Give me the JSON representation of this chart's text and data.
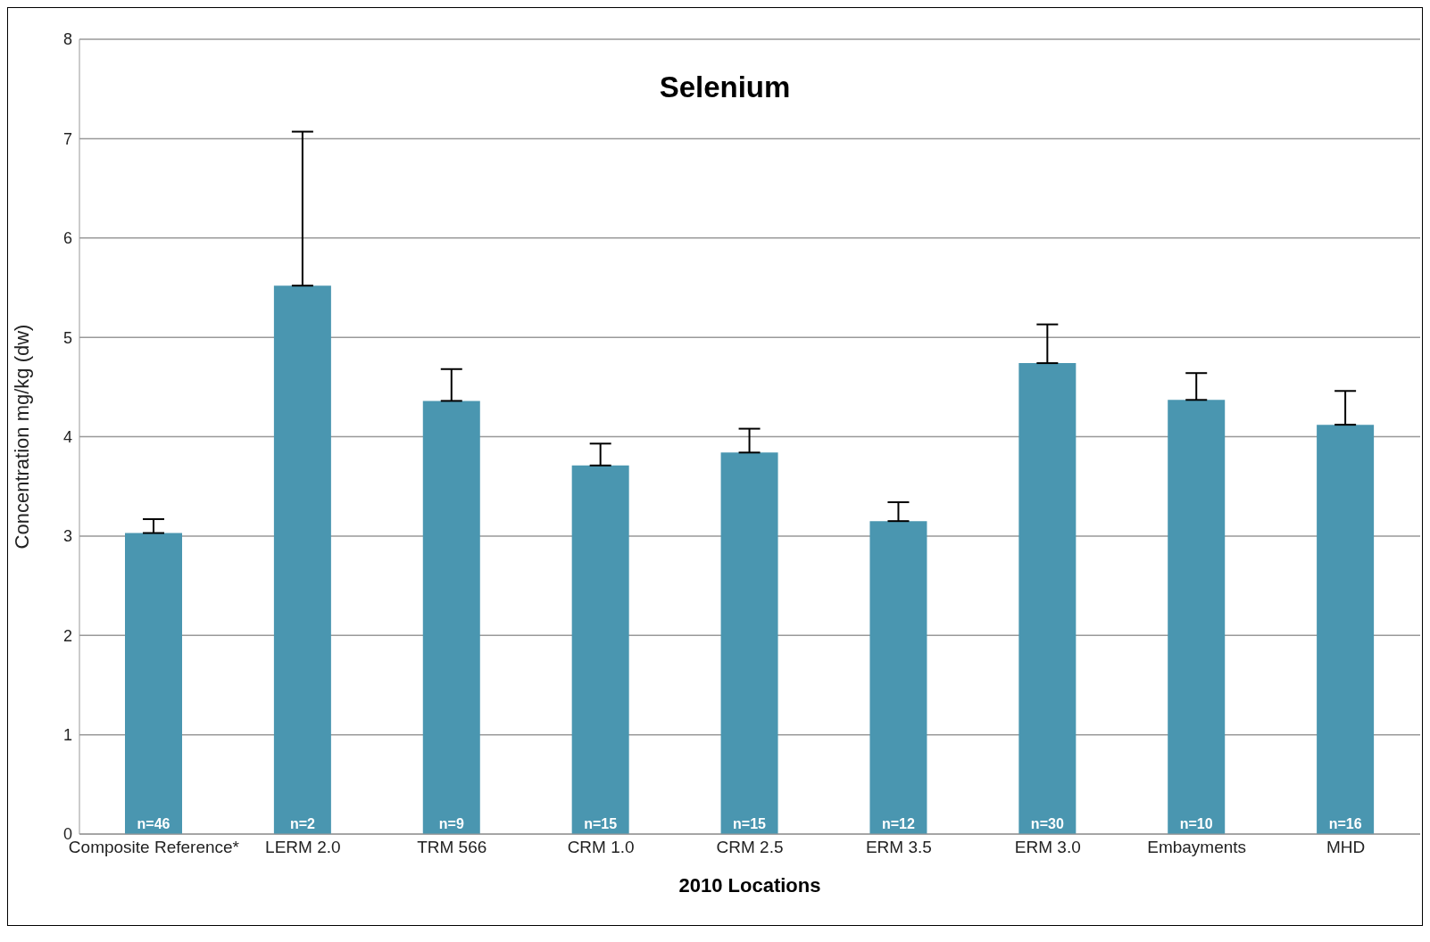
{
  "chart_data": {
    "type": "bar",
    "title": "Selenium",
    "xlabel": "2010 Locations",
    "ylabel": "Concentration  mg/kg (dw)",
    "categories": [
      "Composite Reference*",
      "LERM 2.0",
      "TRM 566",
      "CRM 1.0",
      "CRM 2.5",
      "ERM 3.5",
      "ERM 3.0",
      "Embayments",
      "MHD"
    ],
    "values": [
      3.03,
      5.52,
      4.36,
      3.71,
      3.84,
      3.15,
      4.74,
      4.37,
      4.12
    ],
    "errors": [
      [
        3.03,
        3.17
      ],
      [
        5.52,
        7.07
      ],
      [
        4.36,
        4.68
      ],
      [
        3.71,
        3.93
      ],
      [
        3.84,
        4.08
      ],
      [
        3.15,
        3.34
      ],
      [
        4.74,
        5.13
      ],
      [
        4.37,
        4.64
      ],
      [
        4.12,
        4.46
      ]
    ],
    "annotations": [
      "n=46",
      "n=2",
      "n=9",
      "n=15",
      "n=15",
      "n=12",
      "n=30",
      "n=10",
      "n=16"
    ],
    "color": "#4a96b0",
    "ylim": [
      0,
      8
    ],
    "yticks": [
      0,
      1,
      2,
      3,
      4,
      5,
      6,
      7,
      8
    ],
    "grid": "y"
  }
}
